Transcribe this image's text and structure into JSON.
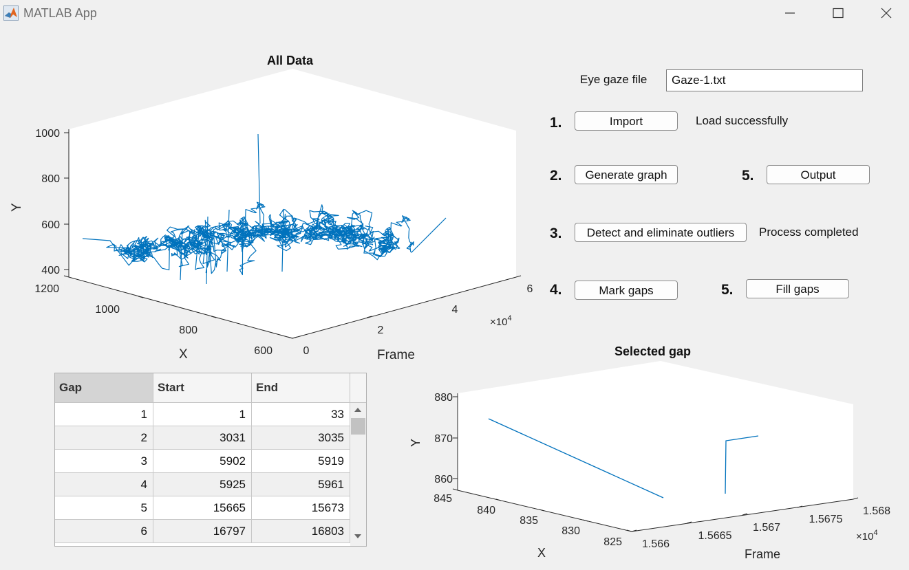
{
  "window": {
    "title": "MATLAB App"
  },
  "controls": {
    "file_label": "Eye gaze file",
    "file_value": "Gaze-1.txt",
    "steps": {
      "s1": "1.",
      "s2": "2.",
      "s3": "3.",
      "s4": "4.",
      "s5a": "5.",
      "s5b": "5."
    },
    "import_label": "Import",
    "import_status": "Load successfully",
    "generate_label": "Generate graph",
    "output_label": "Output",
    "outliers_label": "Detect and eliminate outliers",
    "outliers_status": "Process completed",
    "mark_gaps_label": "Mark gaps",
    "fill_gaps_label": "Fill gaps"
  },
  "plots": {
    "all_data": {
      "title": "All Data",
      "xlabel": "X",
      "ylabel": "Y",
      "zlabel": "Frame",
      "y_ticks": [
        "1000",
        "800",
        "600",
        "400"
      ],
      "x_ticks": [
        "1200",
        "1000",
        "800",
        "600"
      ],
      "frame_ticks": [
        "0",
        "2",
        "4",
        "6"
      ],
      "frame_exp": "×10",
      "frame_exp_power": "4"
    },
    "selected_gap": {
      "title": "Selected gap",
      "xlabel": "X",
      "ylabel": "Y",
      "zlabel": "Frame",
      "y_ticks": [
        "880",
        "870",
        "860"
      ],
      "x_ticks": [
        "845",
        "840",
        "835",
        "830",
        "825"
      ],
      "frame_ticks": [
        "1.566",
        "1.5665",
        "1.567",
        "1.5675",
        "1.568"
      ],
      "frame_exp": "×10",
      "frame_exp_power": "4"
    }
  },
  "chart_data": [
    {
      "type": "line",
      "title": "All Data",
      "xlabel": "X",
      "ylabel": "Y",
      "zlabel": "Frame",
      "xlim": [
        600,
        1200
      ],
      "ylim": [
        400,
        1000
      ],
      "zlim": [
        0,
        60000
      ],
      "x_ticks": [
        600,
        800,
        1000,
        1200
      ],
      "y_ticks": [
        400,
        600,
        800,
        1000
      ],
      "frame_ticks": [
        0,
        20000,
        40000,
        60000
      ],
      "series_color": "#0072bd",
      "grid": false
    },
    {
      "type": "line",
      "title": "Selected gap",
      "xlabel": "X",
      "ylabel": "Y",
      "zlabel": "Frame",
      "xlim": [
        825,
        845
      ],
      "ylim": [
        860,
        880
      ],
      "zlim": [
        15660,
        15680
      ],
      "series_color": "#0072bd",
      "grid": false
    }
  ],
  "table": {
    "headers": [
      "Gap",
      "Start",
      "End"
    ],
    "rows": [
      [
        "1",
        "1",
        "33"
      ],
      [
        "2",
        "3031",
        "3035"
      ],
      [
        "3",
        "5902",
        "5919"
      ],
      [
        "4",
        "5925",
        "5961"
      ],
      [
        "5",
        "15665",
        "15673"
      ],
      [
        "6",
        "16797",
        "16803"
      ]
    ]
  },
  "colors": {
    "line": "#0072bd",
    "background": "#f0f0f0"
  }
}
